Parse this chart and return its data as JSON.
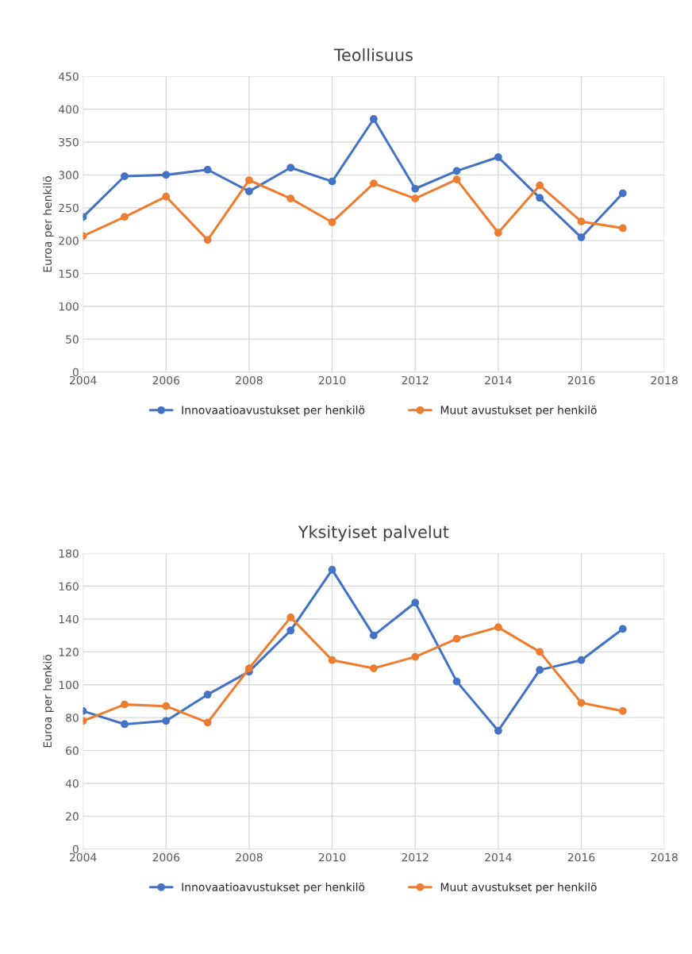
{
  "chart_data": [
    {
      "type": "line",
      "title": "Teollisuus",
      "ylabel": "Euroa per henkilö",
      "x": [
        2004,
        2005,
        2006,
        2007,
        2008,
        2009,
        2010,
        2011,
        2012,
        2013,
        2014,
        2015,
        2016,
        2017
      ],
      "series": [
        {
          "name": "Innovaatioavustukset per henkilö",
          "color": "#4472c4",
          "values": [
            236,
            298,
            300,
            308,
            275,
            311,
            290,
            385,
            279,
            306,
            327,
            265,
            205,
            272
          ]
        },
        {
          "name": "Muut avustukset per henkilö",
          "color": "#ed7d31",
          "values": [
            207,
            236,
            267,
            201,
            292,
            264,
            228,
            287,
            264,
            293,
            212,
            284,
            229,
            219
          ]
        }
      ],
      "xlim": [
        2004,
        2018
      ],
      "xticks": [
        2004,
        2006,
        2008,
        2010,
        2012,
        2014,
        2016,
        2018
      ],
      "ylim": [
        0,
        450
      ],
      "yticks": [
        0,
        50,
        100,
        150,
        200,
        250,
        300,
        350,
        400,
        450
      ],
      "grid": true,
      "legend": "bottom",
      "marker": "circle",
      "line_style": "solid"
    },
    {
      "type": "line",
      "title": "Yksityiset palvelut",
      "ylabel": "Euroa per henkiö",
      "x": [
        2004,
        2005,
        2006,
        2007,
        2008,
        2009,
        2010,
        2011,
        2012,
        2013,
        2014,
        2015,
        2016,
        2017
      ],
      "series": [
        {
          "name": "Innovaatioavustukset per henkilö",
          "color": "#4472c4",
          "values": [
            84,
            76,
            78,
            94,
            108,
            133,
            170,
            130,
            150,
            102,
            72,
            109,
            115,
            134
          ]
        },
        {
          "name": "Muut avustukset per henkilö",
          "color": "#ed7d31",
          "values": [
            78,
            88,
            87,
            77,
            110,
            141,
            115,
            110,
            117,
            128,
            135,
            120,
            89,
            84
          ]
        }
      ],
      "xlim": [
        2004,
        2018
      ],
      "xticks": [
        2004,
        2006,
        2008,
        2010,
        2012,
        2014,
        2016,
        2018
      ],
      "ylim": [
        0,
        180
      ],
      "yticks": [
        0,
        20,
        40,
        60,
        80,
        100,
        120,
        140,
        160,
        180
      ],
      "grid": true,
      "legend": "bottom",
      "marker": "circle",
      "line_style": "solid"
    }
  ]
}
